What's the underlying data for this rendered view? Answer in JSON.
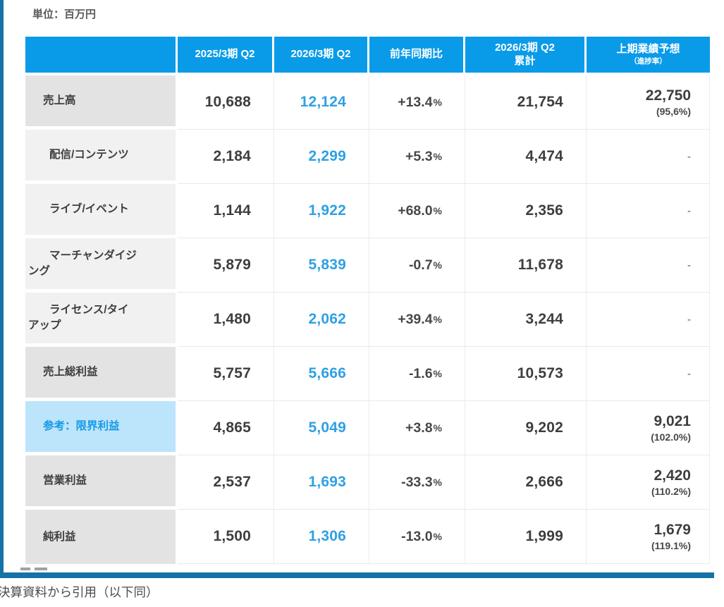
{
  "page": {
    "unit_label": "単位：百万円",
    "caption": "決算資料から引用（以下同）"
  },
  "colors": {
    "frame": "#1571A6",
    "header_bg": "#0A9BE8",
    "accent_blue": "#2FA0E4",
    "highlight_row_bg": "#BCE4FA",
    "highlight_row_text": "#169AE6",
    "label_bg_main": "#E3E3E3",
    "label_bg_sub": "#F1F1F1"
  },
  "table": {
    "percent_sign": "%",
    "columns": [
      {
        "label": ""
      },
      {
        "label": "2025/3期 Q2"
      },
      {
        "label": "2026/3期 Q2"
      },
      {
        "label": "前年同期比"
      },
      {
        "label": "2026/3期 Q2\n累計"
      },
      {
        "label": "上期業績予想",
        "sub": "（進捗率）"
      }
    ],
    "rows": [
      {
        "label": "売上高",
        "type": "main",
        "q2_prev": "10,688",
        "q2_curr": "12,124",
        "yoy": "+13.4",
        "cum": "21,754",
        "forecast": "22,750",
        "progress": "(95,6%)"
      },
      {
        "label": "配信/コンテンツ",
        "type": "sub",
        "q2_prev": "2,184",
        "q2_curr": "2,299",
        "yoy": "+5.3",
        "cum": "4,474",
        "forecast": "-",
        "progress": ""
      },
      {
        "label": "ライブ/イベント",
        "type": "sub",
        "q2_prev": "1,144",
        "q2_curr": "1,922",
        "yoy": "+68.0",
        "cum": "2,356",
        "forecast": "-",
        "progress": ""
      },
      {
        "label": "マーチャンダイジ\nング",
        "type": "sub",
        "q2_prev": "5,879",
        "q2_curr": "5,839",
        "yoy": "-0.7",
        "cum": "11,678",
        "forecast": "-",
        "progress": ""
      },
      {
        "label": "ライセンス/タイ\nアップ",
        "type": "sub",
        "q2_prev": "1,480",
        "q2_curr": "2,062",
        "yoy": "+39.4",
        "cum": "3,244",
        "forecast": "-",
        "progress": ""
      },
      {
        "label": "売上総利益",
        "type": "main",
        "q2_prev": "5,757",
        "q2_curr": "5,666",
        "yoy": "-1.6",
        "cum": "10,573",
        "forecast": "-",
        "progress": ""
      },
      {
        "label": "参考：限界利益",
        "type": "highlight",
        "q2_prev": "4,865",
        "q2_curr": "5,049",
        "yoy": "+3.8",
        "cum": "9,202",
        "forecast": "9,021",
        "progress": "(102.0%)"
      },
      {
        "label": "営業利益",
        "type": "main",
        "q2_prev": "2,537",
        "q2_curr": "1,693",
        "yoy": "-33.3",
        "cum": "2,666",
        "forecast": "2,420",
        "progress": "(110.2%)"
      },
      {
        "label": "純利益",
        "type": "main",
        "q2_prev": "1,500",
        "q2_curr": "1,306",
        "yoy": "-13.0",
        "cum": "1,999",
        "forecast": "1,679",
        "progress": "(119.1%)"
      }
    ]
  },
  "chart_data": {
    "type": "table",
    "unit": "百万円",
    "columns": [
      "",
      "2025/3期 Q2",
      "2026/3期 Q2",
      "前年同期比",
      "2026/3期 Q2 累計",
      "上期業績予想（進捗率）"
    ],
    "rows": [
      [
        "売上高",
        "10,688",
        "12,124",
        "+13.4%",
        "21,754",
        "22,750 (95,6%)"
      ],
      [
        "配信/コンテンツ",
        "2,184",
        "2,299",
        "+5.3%",
        "4,474",
        "-"
      ],
      [
        "ライブ/イベント",
        "1,144",
        "1,922",
        "+68.0%",
        "2,356",
        "-"
      ],
      [
        "マーチャンダイジング",
        "5,879",
        "5,839",
        "-0.7%",
        "11,678",
        "-"
      ],
      [
        "ライセンス/タイアップ",
        "1,480",
        "2,062",
        "+39.4%",
        "3,244",
        "-"
      ],
      [
        "売上総利益",
        "5,757",
        "5,666",
        "-1.6%",
        "10,573",
        "-"
      ],
      [
        "参考：限界利益",
        "4,865",
        "5,049",
        "+3.8%",
        "9,202",
        "9,021 (102.0%)"
      ],
      [
        "営業利益",
        "2,537",
        "1,693",
        "-33.3%",
        "2,666",
        "2,420 (110.2%)"
      ],
      [
        "純利益",
        "1,500",
        "1,306",
        "-13.0%",
        "1,999",
        "1,679 (119.1%)"
      ]
    ]
  }
}
